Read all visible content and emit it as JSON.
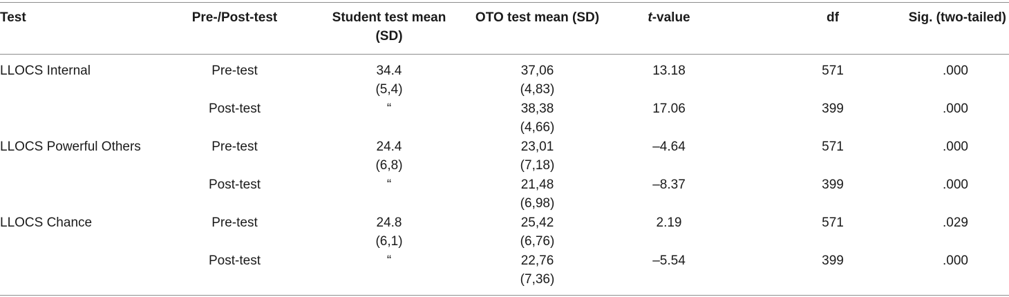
{
  "headers": {
    "test": "Test",
    "prepost": "Pre-/Post-test",
    "student_line1": "Student test mean",
    "student_line2": "(SD)",
    "oto": "OTO test mean (SD)",
    "t_italic": "t",
    "t_rest": "-value",
    "df": "df",
    "sig": "Sig. (two-tailed)"
  },
  "rows": [
    {
      "test": "LLOCS Internal",
      "phase": "Pre-test",
      "student_mean": "34.4",
      "student_sd": "(5,4)",
      "oto_mean": "37,06",
      "oto_sd": "(4,83)",
      "t": "13.18",
      "df": "571",
      "sig": ".000"
    },
    {
      "test": "",
      "phase": "Post-test",
      "student_mean": "“",
      "student_sd": "",
      "oto_mean": "38,38",
      "oto_sd": "(4,66)",
      "t": "17.06",
      "df": "399",
      "sig": ".000"
    },
    {
      "test": "LLOCS Powerful Others",
      "phase": "Pre-test",
      "student_mean": "24.4",
      "student_sd": "(6,8)",
      "oto_mean": "23,01",
      "oto_sd": "(7,18)",
      "t": "–4.64",
      "df": "571",
      "sig": ".000"
    },
    {
      "test": "",
      "phase": "Post-test",
      "student_mean": "“",
      "student_sd": "",
      "oto_mean": "21,48",
      "oto_sd": "(6,98)",
      "t": "–8.37",
      "df": "399",
      "sig": ".000"
    },
    {
      "test": "LLOCS Chance",
      "phase": "Pre-test",
      "student_mean": "24.8",
      "student_sd": "(6,1)",
      "oto_mean": "25,42",
      "oto_sd": "(6,76)",
      "t": "2.19",
      "df": "571",
      "sig": ".029"
    },
    {
      "test": "",
      "phase": "Post-test",
      "student_mean": "“",
      "student_sd": "",
      "oto_mean": "22,76",
      "oto_sd": "(7,36)",
      "t": "–5.54",
      "df": "399",
      "sig": ".000"
    }
  ]
}
